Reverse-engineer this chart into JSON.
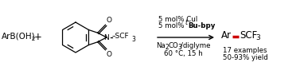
{
  "bg_color": "#ffffff",
  "fig_width": 3.77,
  "fig_height": 0.93,
  "dpi": 100,
  "black": "#000000",
  "red": "#cc0000",
  "cond1": "5 mol% CuI",
  "cond3d": "/diglyme",
  "cond4": "60 °C, 15 h",
  "examples": "17 examples",
  "yield_text": "50-93% yield"
}
